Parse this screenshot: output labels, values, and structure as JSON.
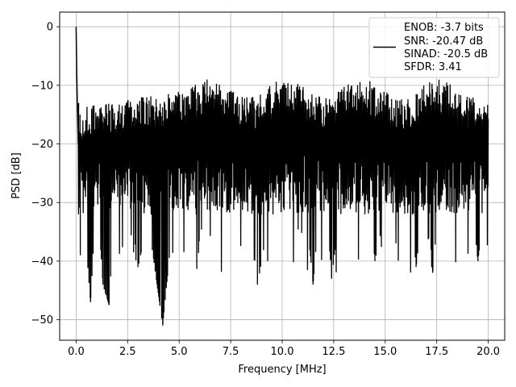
{
  "chart_data": {
    "type": "line",
    "title": "",
    "xlabel": "Frequency [MHz]",
    "ylabel": "PSD [dB]",
    "xlim": [
      -0.8,
      20.8
    ],
    "ylim": [
      -53.5,
      2.5
    ],
    "xticks": [
      0.0,
      2.5,
      5.0,
      7.5,
      10.0,
      12.5,
      15.0,
      17.5,
      20.0
    ],
    "xtick_labels": [
      "0.0",
      "2.5",
      "5.0",
      "7.5",
      "10.0",
      "12.5",
      "15.0",
      "17.5",
      "20.0"
    ],
    "yticks": [
      0,
      -10,
      -20,
      -30,
      -40,
      -50
    ],
    "ytick_labels": [
      "0",
      "−10",
      "−20",
      "−30",
      "−40",
      "−50"
    ],
    "grid": true,
    "legend_position": "upper-right",
    "series": [
      {
        "name": "ENOB: -3.7 bits\nSNR: -20.47 dB\nSINAD: -20.5 dB\nSFDR: 3.41",
        "color": "#000000",
        "description": "Noise-like PSD over 0–20 MHz; DC spike to 0 dB, baseline roughly −15 to −35 dB with dips to about −51 dB",
        "x": [
          0.0,
          0.02,
          0.05,
          0.1,
          0.2,
          0.3,
          0.5,
          0.7,
          1.0,
          1.3,
          1.6,
          2.0,
          2.5,
          3.0,
          3.5,
          4.2,
          5.0,
          5.5,
          6.0,
          6.5,
          7.0,
          7.5,
          8.0,
          8.8,
          9.5,
          10.0,
          10.5,
          11.0,
          11.5,
          12.0,
          12.4,
          13.0,
          13.5,
          14.0,
          14.5,
          15.0,
          15.5,
          16.0,
          16.5,
          17.0,
          17.3,
          18.0,
          18.5,
          19.0,
          19.5,
          20.0
        ],
        "y": [
          0.0,
          -5.0,
          -14.0,
          -16.0,
          -39.0,
          -25.0,
          -38.0,
          -47.0,
          -27.0,
          -44.0,
          -47.5,
          -22.0,
          -35.0,
          -41.0,
          -33.0,
          -51.0,
          -22.0,
          -37.0,
          -30.0,
          -16.0,
          -33.0,
          -25.0,
          -18.0,
          -44.0,
          -30.0,
          -20.0,
          -37.0,
          -25.0,
          -44.0,
          -22.0,
          -43.0,
          -25.0,
          -33.0,
          -18.0,
          -40.0,
          -22.0,
          -32.0,
          -19.0,
          -41.0,
          -25.0,
          -42.0,
          -22.0,
          -35.0,
          -24.0,
          -40.0,
          -24.0
        ]
      }
    ]
  },
  "legend": {
    "lines": [
      "ENOB: -3.7 bits",
      "SNR: -20.47 dB",
      "SINAD: -20.5 dB",
      "SFDR: 3.41"
    ]
  }
}
